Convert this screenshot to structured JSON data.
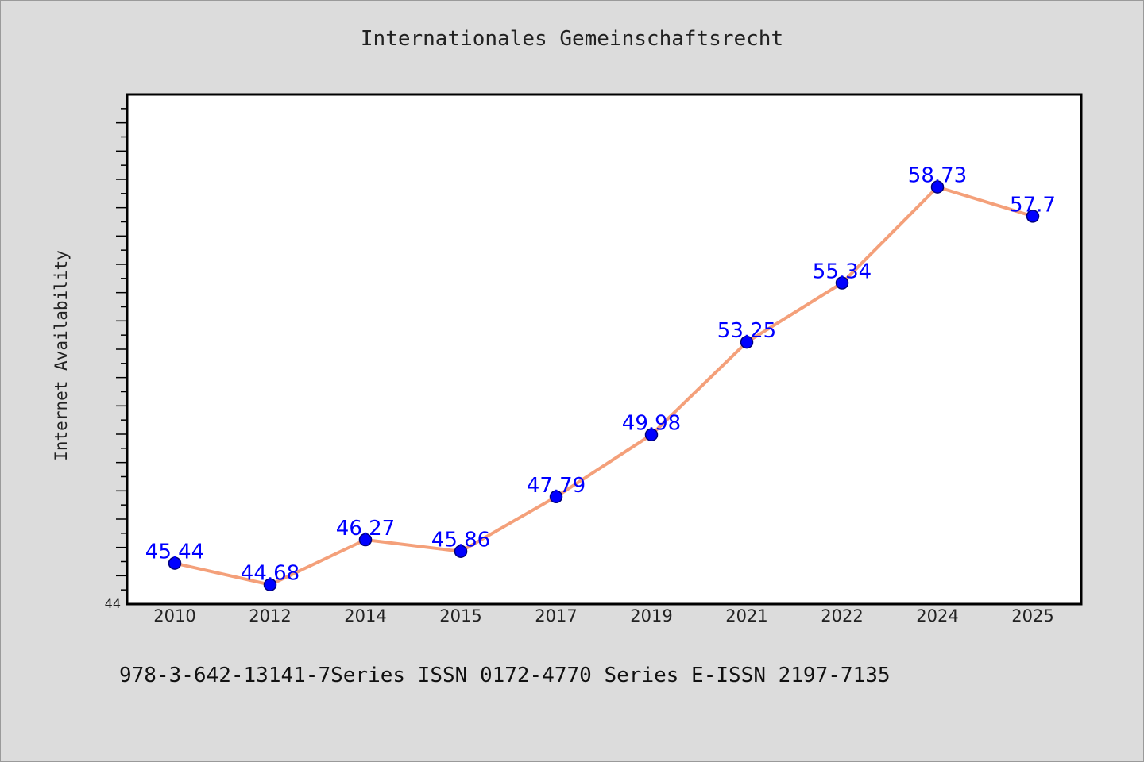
{
  "chart_data": {
    "type": "line",
    "title": "Internationales Gemeinschaftsrecht",
    "xlabel": "",
    "ylabel": "Internet Availability",
    "categories": [
      "2010",
      "2012",
      "2014",
      "2015",
      "2017",
      "2019",
      "2021",
      "2022",
      "2024",
      "2025"
    ],
    "series": [
      {
        "values": [
          45.44,
          44.68,
          46.27,
          45.86,
          47.79,
          49.98,
          53.25,
          55.34,
          58.73,
          57.7
        ],
        "labels": [
          "45.44",
          "44.68",
          "46.27",
          "45.86",
          "47.79",
          "49.98",
          "53.25",
          "55.34",
          "58.73",
          "57.7"
        ]
      }
    ],
    "ylim": [
      44,
      62
    ],
    "y_min_tick_label": "44",
    "grid": false,
    "legend": "none",
    "colors": {
      "line": "#f4a07a",
      "marker": "#0000ff",
      "marker_edge": "#00007a",
      "data_label": "#0000ff",
      "plot_bg": "#ffffff",
      "page_bg": "#dcdcdc"
    }
  },
  "footer": {
    "text": "978-3-642-13141-7Series ISSN 0172-4770 Series E-ISSN 2197-7135"
  }
}
